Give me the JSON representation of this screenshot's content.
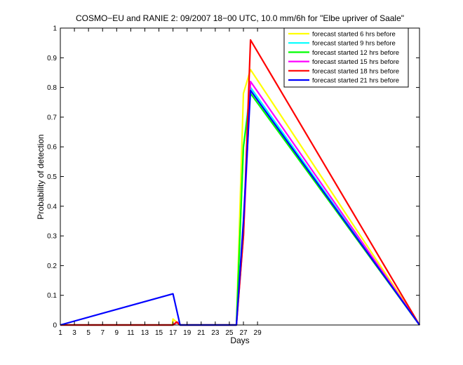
{
  "chart_data": {
    "type": "line",
    "title": "COSMO−EU and RANIE 2: 09/2007 18−00 UTC, 10.0 mm/6h for \"Elbe upriver of Saale\"",
    "xlabel": "Days",
    "ylabel": "Probability of detection",
    "xlim": [
      1,
      52
    ],
    "ylim": [
      0,
      1
    ],
    "x_ticks": [
      1,
      3,
      5,
      7,
      9,
      11,
      13,
      15,
      17,
      19,
      21,
      23,
      25,
      27,
      29
    ],
    "y_ticks": [
      0,
      0.1,
      0.2,
      0.3,
      0.4,
      0.5,
      0.6,
      0.7,
      0.8,
      0.9,
      1
    ],
    "y_tick_labels": [
      "0",
      "0.1",
      "0.2",
      "0.3",
      "0.4",
      "0.5",
      "0.6",
      "0.7",
      "0.8",
      "0.9",
      "1"
    ],
    "grid": false,
    "legend_position": "top-right",
    "series": [
      {
        "name": "forecast started 6 hrs before",
        "color": "#ffff00",
        "x": [
          1,
          16.9,
          17,
          17.5,
          18,
          26,
          27,
          28,
          52
        ],
        "y": [
          0,
          0,
          0.02,
          0.01,
          0,
          0,
          0.78,
          0.86,
          0
        ]
      },
      {
        "name": "forecast started 9 hrs before",
        "color": "#00ffff",
        "x": [
          1,
          17,
          17.6,
          18,
          26,
          27,
          28,
          52
        ],
        "y": [
          0,
          0,
          0.01,
          0,
          0,
          0.6,
          0.8,
          0
        ]
      },
      {
        "name": "forecast started 12 hrs before",
        "color": "#00ff00",
        "x": [
          1,
          17,
          17.6,
          18,
          26,
          27,
          28,
          52
        ],
        "y": [
          0,
          0,
          0.01,
          0,
          0,
          0.6,
          0.78,
          0
        ]
      },
      {
        "name": "forecast started 15 hrs before",
        "color": "#ff00ff",
        "x": [
          1,
          17,
          17.6,
          18,
          26,
          27,
          28,
          52
        ],
        "y": [
          0,
          0,
          0.01,
          0,
          0,
          0.3,
          0.82,
          0
        ]
      },
      {
        "name": "forecast started 18 hrs before",
        "color": "#ff0000",
        "x": [
          1,
          17,
          17.5,
          18,
          26,
          27,
          28,
          52
        ],
        "y": [
          0,
          0,
          0.01,
          0,
          0,
          0.3,
          0.96,
          0
        ]
      },
      {
        "name": "forecast started 21 hrs before",
        "color": "#0000ff",
        "x": [
          1,
          17,
          18,
          26,
          27,
          28,
          52
        ],
        "y": [
          0,
          0.105,
          0,
          0,
          0.35,
          0.79,
          0
        ]
      }
    ]
  }
}
